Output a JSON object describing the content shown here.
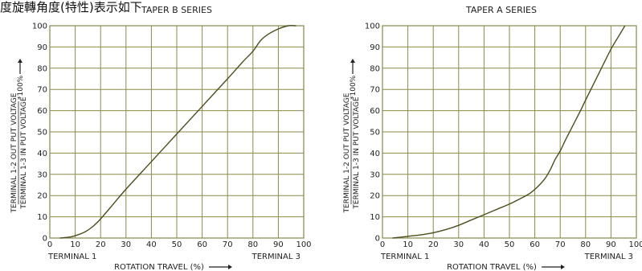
{
  "header_text": "度旋轉角度(特性)表示如下",
  "chart_data": [
    {
      "type": "line",
      "title": "TAPER B SERIES",
      "xlabel": "ROTATION TRAVEL (%)",
      "ylabel_numerator": "TERMINAL 1-2 OUT PUT VOLTAGE",
      "ylabel_denominator": "TERMINAL 1-3 IN PUT VOLTAGE",
      "ylabel_suffix": "*100%",
      "x_start_label": "TERMINAL 1",
      "x_end_label": "TERMINAL 3",
      "xlim": [
        0,
        100
      ],
      "ylim": [
        0,
        100
      ],
      "xticks": [
        0,
        10,
        20,
        30,
        40,
        50,
        60,
        70,
        80,
        90,
        100
      ],
      "yticks": [
        0,
        10,
        20,
        30,
        40,
        50,
        60,
        70,
        80,
        90,
        100
      ],
      "grid": true,
      "series": [
        {
          "x": [
            4,
            8,
            11,
            14,
            17,
            20,
            25,
            30,
            40,
            50,
            60,
            70,
            76,
            80,
            83,
            86,
            90,
            94,
            97
          ],
          "y": [
            0,
            0.5,
            1.5,
            3,
            5.5,
            9,
            16,
            23,
            36,
            49,
            62,
            75,
            83,
            88,
            93,
            96,
            98.5,
            100,
            100
          ]
        }
      ],
      "color": "#4d4d1f"
    },
    {
      "type": "line",
      "title": "TAPER A SERIES",
      "xlabel": "ROTATION TRAVEL (%)",
      "ylabel_numerator": "TERMINAL 1-2 OUT PUT VOLTAGE",
      "ylabel_denominator": "TERMINAL 1-3 IN PUT VOLTAGE",
      "ylabel_suffix": "*100%",
      "x_start_label": "TERMINAL 1",
      "x_end_label": "TERMINAL 3",
      "xlim": [
        0,
        100
      ],
      "ylim": [
        0,
        100
      ],
      "xticks": [
        0,
        10,
        20,
        30,
        40,
        50,
        60,
        70,
        80,
        90,
        100
      ],
      "yticks": [
        0,
        10,
        20,
        30,
        40,
        50,
        60,
        70,
        80,
        90,
        100
      ],
      "grid": true,
      "series": [
        {
          "x": [
            4,
            10,
            15,
            20,
            25,
            30,
            35,
            40,
            45,
            50,
            55,
            58,
            61,
            64,
            66,
            68,
            70,
            72,
            75,
            78,
            80,
            85,
            90,
            93,
            95.5
          ],
          "y": [
            0,
            0.8,
            1.5,
            2.5,
            4,
            6,
            8.5,
            11,
            13.5,
            16,
            19,
            21,
            24,
            28,
            32,
            37,
            41,
            46,
            53,
            60,
            65,
            77,
            89,
            95,
            100
          ]
        }
      ],
      "color": "#4d4d1f"
    }
  ]
}
